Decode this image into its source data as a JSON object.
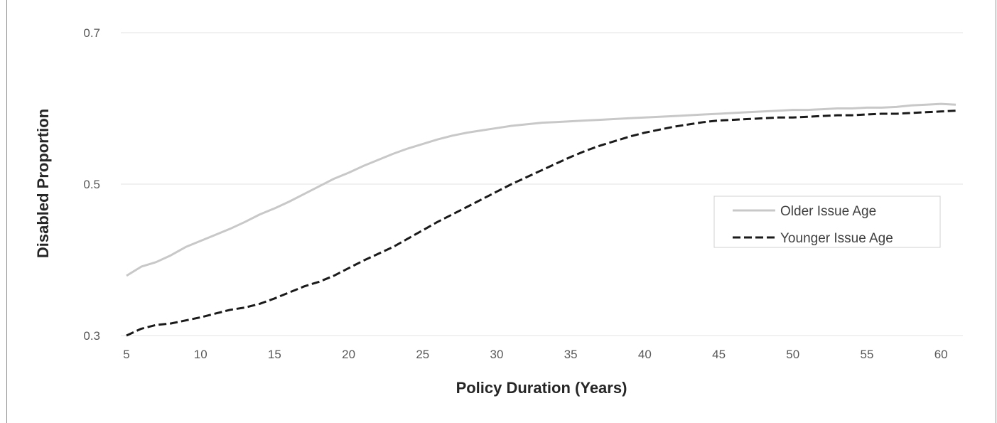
{
  "chart_data": {
    "type": "line",
    "title": "",
    "xlabel": "Policy Duration (Years)",
    "ylabel": "Disabled Proportion",
    "xlim": [
      5,
      61
    ],
    "ylim": [
      0.3,
      0.7
    ],
    "x_ticks": [
      5,
      10,
      15,
      20,
      25,
      30,
      35,
      40,
      45,
      50,
      55,
      60
    ],
    "y_ticks": [
      0.3,
      0.5,
      0.7
    ],
    "y_tick_labels": [
      "0.3",
      "0.5",
      "0.7"
    ],
    "grid": true,
    "legend_position": "right",
    "series": [
      {
        "name": "Older Issue Age",
        "color": "#c8c8c8",
        "style": "solid",
        "x": [
          5,
          6,
          7,
          8,
          9,
          10,
          11,
          12,
          13,
          14,
          15,
          16,
          17,
          18,
          19,
          20,
          21,
          22,
          23,
          24,
          25,
          26,
          27,
          28,
          29,
          30,
          31,
          32,
          33,
          34,
          35,
          36,
          37,
          38,
          39,
          40,
          41,
          42,
          43,
          44,
          45,
          46,
          47,
          48,
          49,
          50,
          51,
          52,
          53,
          54,
          55,
          56,
          57,
          58,
          59,
          60,
          61
        ],
        "values": [
          0.379,
          0.391,
          0.397,
          0.406,
          0.417,
          0.425,
          0.433,
          0.441,
          0.45,
          0.46,
          0.468,
          0.477,
          0.487,
          0.497,
          0.507,
          0.515,
          0.524,
          0.532,
          0.54,
          0.547,
          0.553,
          0.559,
          0.564,
          0.568,
          0.571,
          0.574,
          0.577,
          0.579,
          0.581,
          0.582,
          0.583,
          0.584,
          0.585,
          0.586,
          0.587,
          0.588,
          0.589,
          0.59,
          0.591,
          0.592,
          0.593,
          0.594,
          0.595,
          0.596,
          0.597,
          0.598,
          0.598,
          0.599,
          0.6,
          0.6,
          0.601,
          0.601,
          0.602,
          0.604,
          0.605,
          0.606,
          0.605
        ]
      },
      {
        "name": "Younger Issue Age",
        "color": "#1a1a1a",
        "style": "dashed",
        "x": [
          5,
          6,
          7,
          8,
          9,
          10,
          11,
          12,
          13,
          14,
          15,
          16,
          17,
          18,
          19,
          20,
          21,
          22,
          23,
          24,
          25,
          26,
          27,
          28,
          29,
          30,
          31,
          32,
          33,
          34,
          35,
          36,
          37,
          38,
          39,
          40,
          41,
          42,
          43,
          44,
          45,
          46,
          47,
          48,
          49,
          50,
          51,
          52,
          53,
          54,
          55,
          56,
          57,
          58,
          59,
          60,
          61
        ],
        "values": [
          0.3,
          0.309,
          0.314,
          0.316,
          0.32,
          0.324,
          0.329,
          0.334,
          0.337,
          0.342,
          0.349,
          0.357,
          0.365,
          0.371,
          0.379,
          0.389,
          0.399,
          0.408,
          0.417,
          0.428,
          0.439,
          0.45,
          0.46,
          0.47,
          0.48,
          0.49,
          0.5,
          0.509,
          0.518,
          0.527,
          0.536,
          0.544,
          0.551,
          0.557,
          0.563,
          0.568,
          0.572,
          0.576,
          0.579,
          0.582,
          0.584,
          0.585,
          0.586,
          0.587,
          0.588,
          0.588,
          0.589,
          0.59,
          0.591,
          0.591,
          0.592,
          0.593,
          0.593,
          0.594,
          0.595,
          0.596,
          0.597
        ]
      }
    ]
  }
}
